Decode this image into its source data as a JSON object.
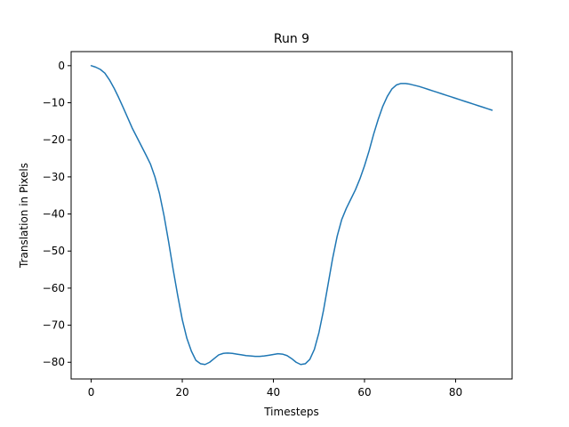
{
  "chart_data": {
    "type": "line",
    "title": "Run 9",
    "xlabel": "Timesteps",
    "ylabel": "Translation in Pixels",
    "xlim": [
      -4.4,
      92.4
    ],
    "ylim": [
      -84.5,
      3.8
    ],
    "xticks": [
      0,
      20,
      40,
      60,
      80
    ],
    "yticks": [
      0,
      -10,
      -20,
      -30,
      -40,
      -50,
      -60,
      -70,
      -80
    ],
    "xtick_labels": [
      "0",
      "20",
      "40",
      "60",
      "80"
    ],
    "ytick_labels": [
      "0",
      "−10",
      "−20",
      "−30",
      "−40",
      "−50",
      "−60",
      "−70",
      "−80"
    ],
    "grid": false,
    "color": "#1f77b4",
    "series": [
      {
        "x": [
          0,
          1,
          2,
          3,
          4,
          5,
          6,
          7,
          8,
          9,
          10,
          11,
          12,
          13,
          14,
          15,
          16,
          17,
          18,
          19,
          20,
          21,
          22,
          23,
          24,
          25,
          26,
          27,
          28,
          29,
          30,
          31,
          32,
          33,
          34,
          35,
          36,
          37,
          38,
          39,
          40,
          41,
          42,
          43,
          44,
          45,
          46,
          47,
          48,
          49,
          50,
          51,
          52,
          53,
          54,
          55,
          56,
          57,
          58,
          59,
          60,
          61,
          62,
          63,
          64,
          65,
          66,
          67,
          68,
          69,
          70,
          71,
          72,
          73,
          74,
          75,
          76,
          77,
          78,
          79,
          80,
          81,
          82,
          83,
          84,
          85,
          86,
          87,
          88
        ],
        "y": [
          0,
          -0.4,
          -1.0,
          -2.0,
          -3.8,
          -6.0,
          -8.5,
          -11.2,
          -14.0,
          -16.8,
          -19.2,
          -21.6,
          -24.0,
          -26.5,
          -30.0,
          -34.5,
          -40.5,
          -47.5,
          -55.0,
          -62.0,
          -68.5,
          -73.5,
          -77.0,
          -79.5,
          -80.4,
          -80.6,
          -80.0,
          -79.0,
          -78.0,
          -77.6,
          -77.5,
          -77.6,
          -77.8,
          -78.0,
          -78.2,
          -78.3,
          -78.4,
          -78.4,
          -78.3,
          -78.1,
          -77.9,
          -77.7,
          -77.8,
          -78.2,
          -79.0,
          -80.0,
          -80.6,
          -80.4,
          -79.2,
          -76.5,
          -72.0,
          -66.0,
          -59.0,
          -52.0,
          -46.0,
          -41.5,
          -38.5,
          -36.0,
          -33.5,
          -30.5,
          -27.0,
          -23.0,
          -18.5,
          -14.5,
          -11.0,
          -8.3,
          -6.3,
          -5.2,
          -4.8,
          -4.8,
          -5.0,
          -5.3,
          -5.6,
          -6.0,
          -6.4,
          -6.8,
          -7.2,
          -7.6,
          -8.0,
          -8.4,
          -8.8,
          -9.2,
          -9.6,
          -10.0,
          -10.4,
          -10.8,
          -11.2,
          -11.6,
          -12.0
        ]
      }
    ]
  }
}
